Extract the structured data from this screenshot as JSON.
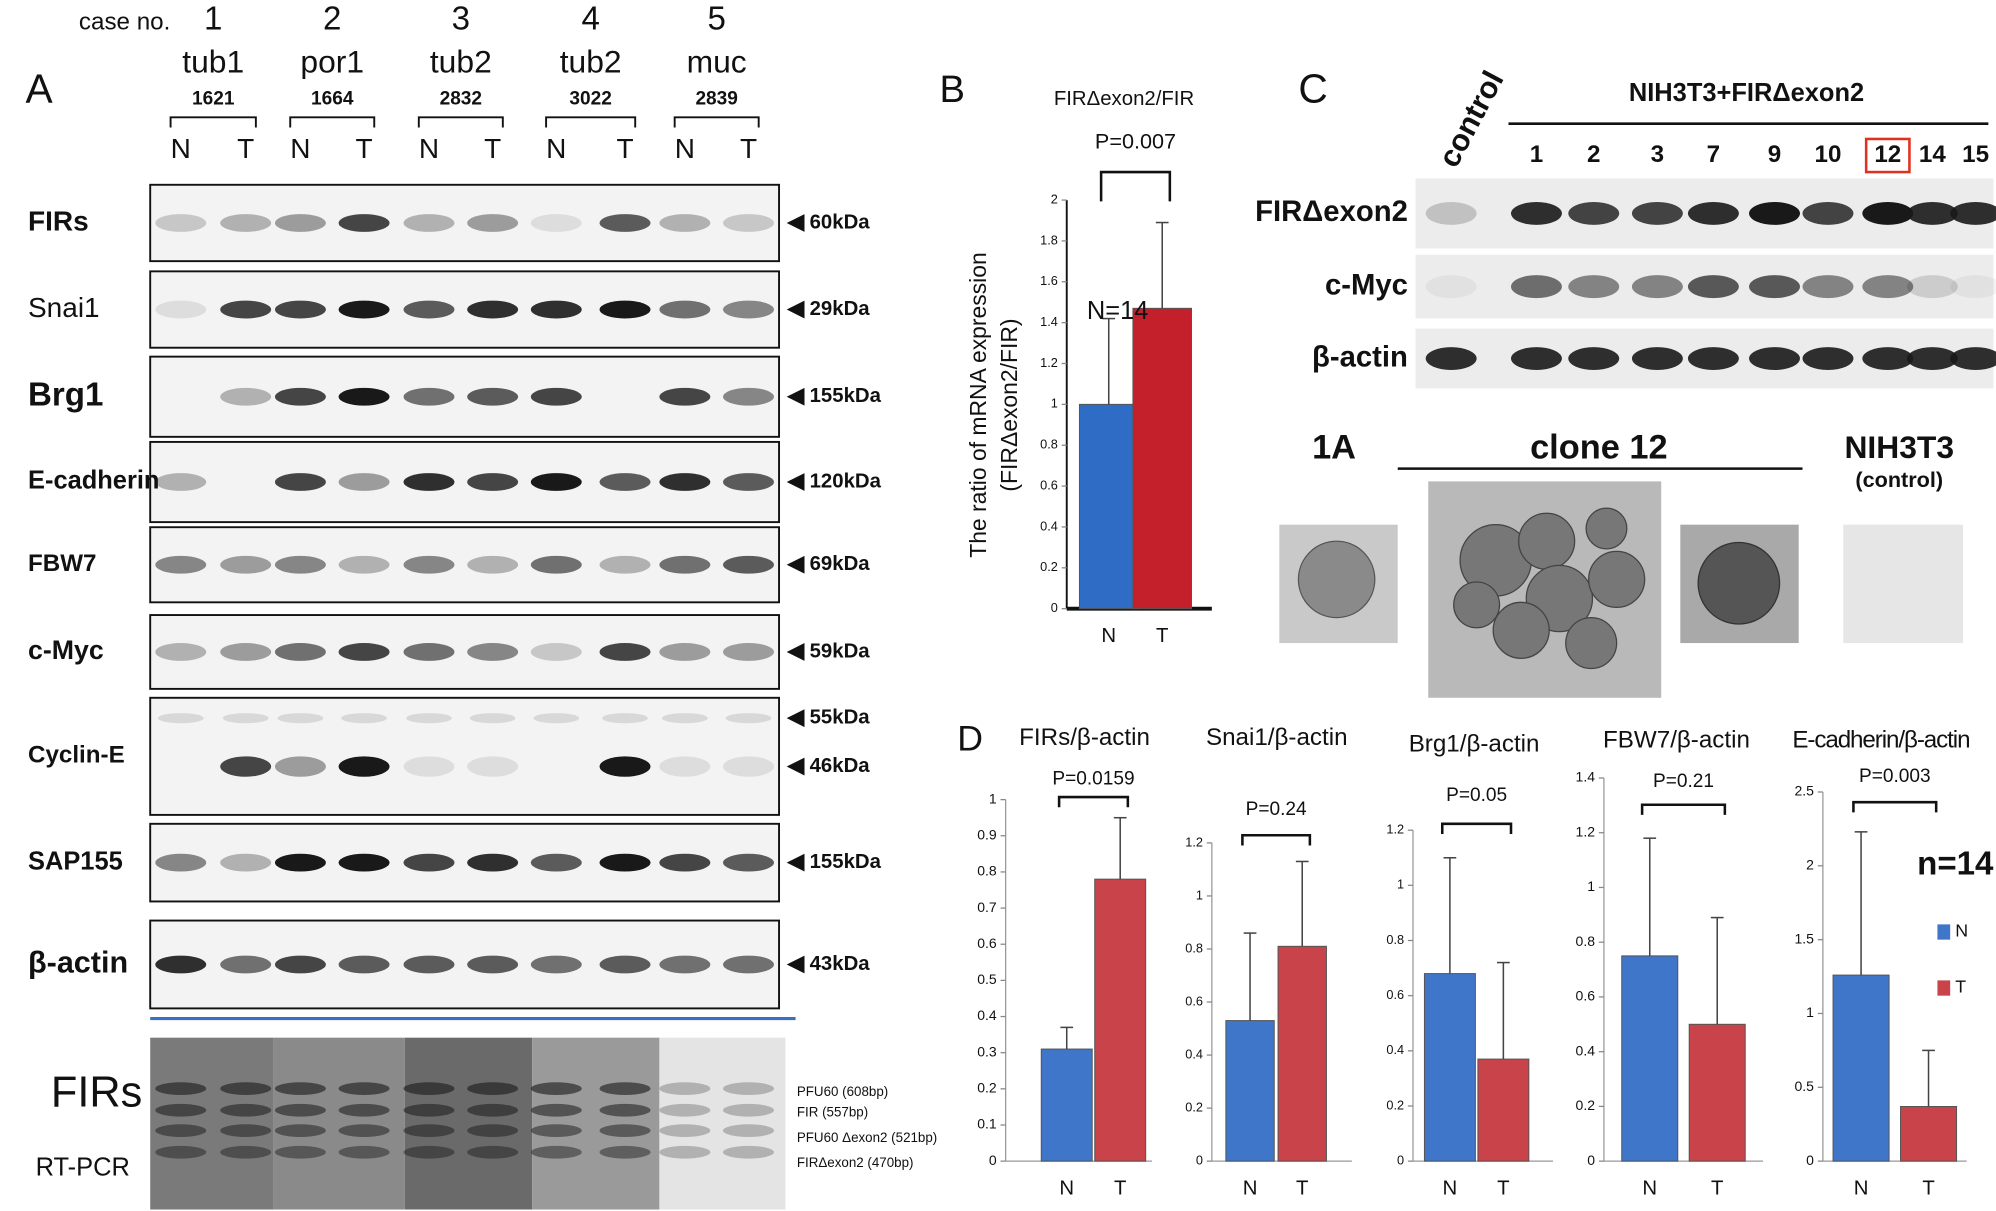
{
  "panel_a": {
    "label": "A",
    "case_label": "case no.",
    "cases": [
      {
        "number": "1",
        "type": "tub1",
        "id": "1621",
        "lanes": [
          "N",
          "T"
        ]
      },
      {
        "number": "2",
        "type": "por1",
        "id": "1664",
        "lanes": [
          "N",
          "T"
        ]
      },
      {
        "number": "3",
        "type": "tub2",
        "id": "2832",
        "lanes": [
          "N",
          "T"
        ]
      },
      {
        "number": "4",
        "type": "tub2",
        "id": "3022",
        "lanes": [
          "N",
          "T"
        ]
      },
      {
        "number": "5",
        "type": "muc",
        "id": "2839",
        "lanes": [
          "N",
          "T"
        ]
      }
    ],
    "blots": [
      {
        "name": "FIRs",
        "markers": [
          "60kDa"
        ]
      },
      {
        "name": "Snai1",
        "markers": [
          "29kDa"
        ]
      },
      {
        "name": "Brg1",
        "markers": [
          "155kDa"
        ]
      },
      {
        "name": "E-cadherin",
        "markers": [
          "120kDa"
        ]
      },
      {
        "name": "FBW7",
        "markers": [
          "69kDa"
        ]
      },
      {
        "name": "c-Myc",
        "markers": [
          "59kDa"
        ]
      },
      {
        "name": "Cyclin-E",
        "markers": [
          "55kDa",
          "46kDa"
        ]
      },
      {
        "name": "SAP155",
        "markers": [
          "155kDa"
        ]
      },
      {
        "name": "β-actin",
        "markers": [
          "43kDa"
        ]
      }
    ],
    "rt_pcr": {
      "title": "FIRs",
      "subtitle": "RT-PCR",
      "bands": [
        "PFU60 (608bp)",
        "FIR (557bp)",
        "PFU60 Δexon2 (521bp)",
        "FIRΔexon2 (470bp)"
      ]
    }
  },
  "panel_c": {
    "label": "C",
    "control": "control",
    "group": "NIH3T3+FIRΔexon2",
    "clones": [
      "1",
      "2",
      "3",
      "7",
      "9",
      "10",
      "12",
      "14",
      "15"
    ],
    "rows": [
      "FIRΔexon2",
      "c-Myc",
      "β-actin"
    ],
    "colonies": {
      "left": "1A",
      "middle": "clone 12",
      "right": "NIH3T3",
      "right_note": "(control)"
    }
  },
  "panel_d_label": "D",
  "chart_data": [
    {
      "type": "bar",
      "panel": "B",
      "title": "FIRΔexon2/FIR",
      "p_value": "P=0.007",
      "annotation": "N=14",
      "y_label": [
        "The ratio of mRNA expression",
        "(FIRΔexon2/FIR)"
      ],
      "categories": [
        "N",
        "T"
      ],
      "values": [
        1.0,
        1.47
      ],
      "errors": [
        0.42,
        0.42
      ],
      "colors": [
        "#2f6cc6",
        "#c4202c"
      ],
      "ylim": [
        0,
        2
      ],
      "yticks": [
        0,
        0.2,
        0.4,
        0.6,
        0.8,
        1,
        1.2,
        1.4,
        1.6,
        1.8,
        2
      ]
    },
    {
      "type": "bar",
      "title": "FIRs/β-actin",
      "p_value": "P=0.0159",
      "categories": [
        "N",
        "T"
      ],
      "values": [
        0.31,
        0.78
      ],
      "errors": [
        0.06,
        0.17
      ],
      "colors": [
        "#3f76c9",
        "#c9434b"
      ],
      "ylim": [
        0,
        1
      ],
      "yticks": [
        0,
        0.1,
        0.2,
        0.3,
        0.4,
        0.5,
        0.6,
        0.7,
        0.8,
        0.9,
        1
      ]
    },
    {
      "type": "bar",
      "title": "Snai1/β-actin",
      "p_value": "P=0.24",
      "categories": [
        "N",
        "T"
      ],
      "values": [
        0.53,
        0.81
      ],
      "errors": [
        0.33,
        0.32
      ],
      "colors": [
        "#3f76c9",
        "#c9434b"
      ],
      "ylim": [
        0,
        1.2
      ],
      "yticks": [
        0,
        0.2,
        0.4,
        0.6,
        0.8,
        1,
        1.2
      ]
    },
    {
      "type": "bar",
      "title": "Brg1/β-actin",
      "p_value": "P=0.05",
      "categories": [
        "N",
        "T"
      ],
      "values": [
        0.68,
        0.37
      ],
      "errors": [
        0.42,
        0.35
      ],
      "colors": [
        "#3f76c9",
        "#c9434b"
      ],
      "ylim": [
        0,
        1.2
      ],
      "yticks": [
        0,
        0.2,
        0.4,
        0.6,
        0.8,
        1,
        1.2
      ]
    },
    {
      "type": "bar",
      "title": "FBW7/β-actin",
      "p_value": "P=0.21",
      "categories": [
        "N",
        "T"
      ],
      "values": [
        0.75,
        0.5
      ],
      "errors": [
        0.43,
        0.39
      ],
      "colors": [
        "#3f76c9",
        "#c9434b"
      ],
      "ylim": [
        0,
        1.4
      ],
      "yticks": [
        0,
        0.2,
        0.4,
        0.6,
        0.8,
        1,
        1.2,
        1.4
      ]
    },
    {
      "type": "bar",
      "title": "E-cadherin/β-actin",
      "p_value": "P=0.003",
      "annotation": "n=14",
      "categories": [
        "N",
        "T"
      ],
      "values": [
        1.26,
        0.37
      ],
      "errors": [
        0.97,
        0.38
      ],
      "colors": [
        "#3f76c9",
        "#c9434b"
      ],
      "ylim": [
        0,
        2.5
      ],
      "yticks": [
        0,
        0.5,
        1,
        1.5,
        2,
        2.5
      ],
      "legend": true
    }
  ]
}
